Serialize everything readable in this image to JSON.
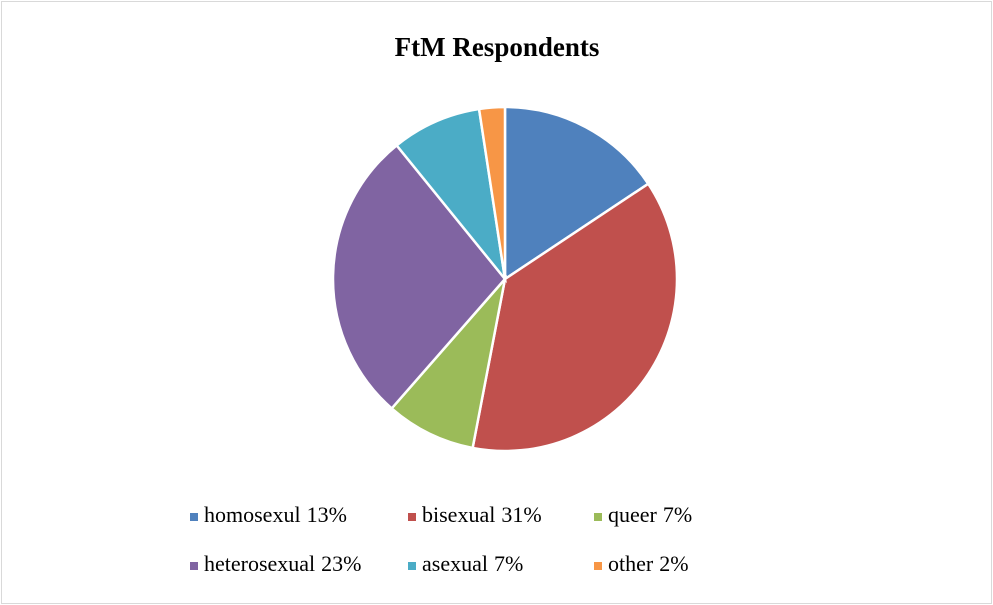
{
  "chart_data": {
    "type": "pie",
    "title": "FtM Respondents",
    "categories": [
      "homosexul",
      "bisexual",
      "queer",
      "heterosexual",
      "asexual",
      "other"
    ],
    "values": [
      13,
      31,
      7,
      23,
      7,
      2
    ],
    "value_labels": [
      "13%",
      "31%",
      "7%",
      "23%",
      "7%",
      "2%"
    ],
    "colors": [
      "#4f81bd",
      "#c0504d",
      "#9bbb59",
      "#8064a2",
      "#4bacc6",
      "#f79646"
    ],
    "legend": "bottom"
  }
}
